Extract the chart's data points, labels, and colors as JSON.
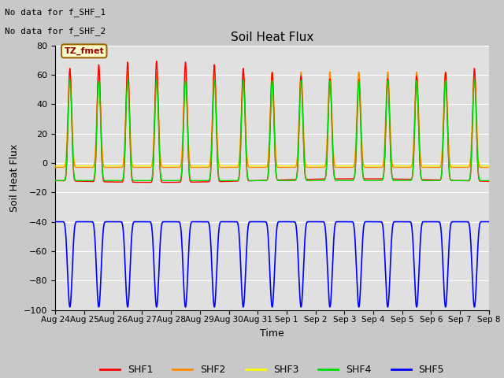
{
  "title": "Soil Heat Flux",
  "xlabel": "Time",
  "ylabel": "Soil Heat Flux",
  "ylim": [
    -100,
    80
  ],
  "yticks": [
    -100,
    -80,
    -60,
    -40,
    -20,
    0,
    20,
    40,
    60,
    80
  ],
  "fig_bg_color": "#c8c8c8",
  "plot_bg_color": "#e0e0e0",
  "text_top_left": [
    "No data for f_SHF_1",
    "No data for f_SHF_2"
  ],
  "legend_box_text": "TZ_fmet",
  "legend_box_color": "#ffffcc",
  "legend_box_border": "#996600",
  "series_colors": {
    "SHF1": "#ff0000",
    "SHF2": "#ff8800",
    "SHF3": "#ffff00",
    "SHF4": "#00dd00",
    "SHF5": "#0000ff"
  },
  "n_days": 15,
  "x_tick_labels": [
    "Aug 24",
    "Aug 25",
    "Aug 26",
    "Aug 27",
    "Aug 28",
    "Aug 29",
    "Aug 30",
    "Aug 31",
    "Sep 1",
    "Sep 2",
    "Sep 3",
    "Sep 4",
    "Sep 5",
    "Sep 6",
    "Sep 7",
    "Sep 8"
  ]
}
